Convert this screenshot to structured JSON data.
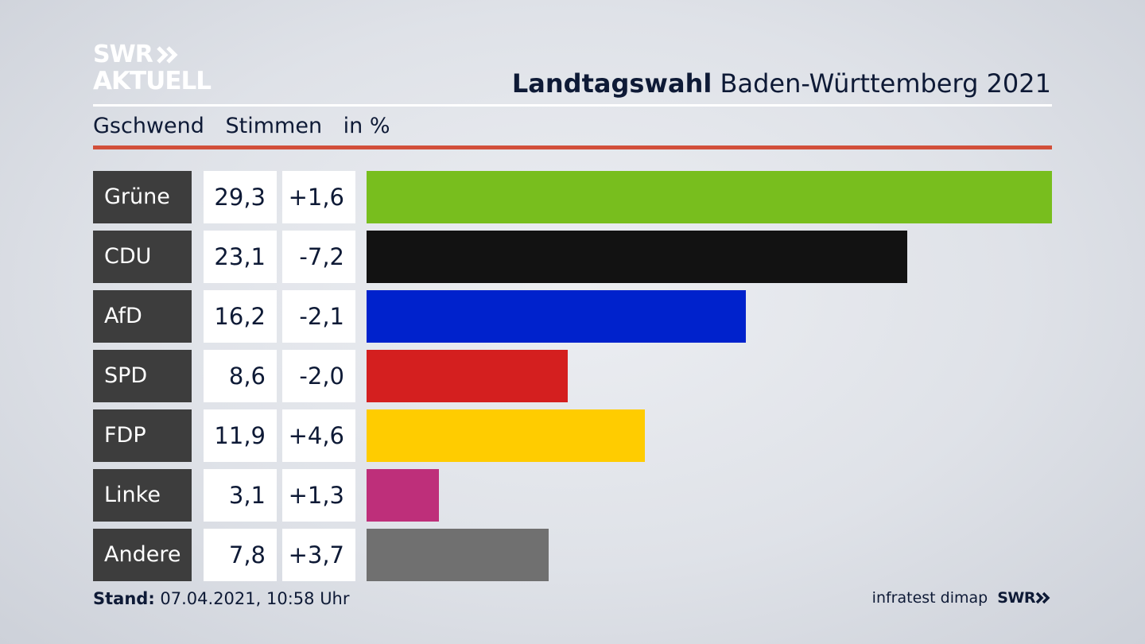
{
  "logo": {
    "line1": "SWR",
    "line2": "AKTUELL"
  },
  "header": {
    "title_bold": "Landtagswahl",
    "title_rest": "Baden-Württemberg 2021"
  },
  "subheader": {
    "place": "Gschwend",
    "metric": "Stimmen",
    "unit": "in %"
  },
  "footer": {
    "stand_label": "Stand:",
    "stand_value": "07.04.2021, 10:58 Uhr",
    "source": "infratest dimap",
    "brand": "SWR"
  },
  "colors": {
    "accent_red": "#d24f3a",
    "label_bg": "#3d3d3d"
  },
  "chart_data": {
    "type": "bar",
    "orientation": "horizontal",
    "categories": [
      "Grüne",
      "CDU",
      "AfD",
      "SPD",
      "FDP",
      "Linke",
      "Andere"
    ],
    "values": [
      29.3,
      23.1,
      16.2,
      8.6,
      11.9,
      3.1,
      7.8
    ],
    "values_label": [
      "29,3",
      "23,1",
      "16,2",
      "8,6",
      "11,9",
      "3,1",
      "7,8"
    ],
    "diff_label": [
      "+1,6",
      "-7,2",
      "-2,1",
      "-2,0",
      "+4,6",
      "+1,3",
      "+3,7"
    ],
    "diffs": [
      1.6,
      -7.2,
      -2.1,
      -2.0,
      4.6,
      1.3,
      3.7
    ],
    "colors": [
      "#78be1e",
      "#121212",
      "#0022cc",
      "#d41f1f",
      "#ffcc00",
      "#be2f7a",
      "#707070"
    ],
    "xlim": [
      0,
      29.3
    ],
    "grid": false
  }
}
